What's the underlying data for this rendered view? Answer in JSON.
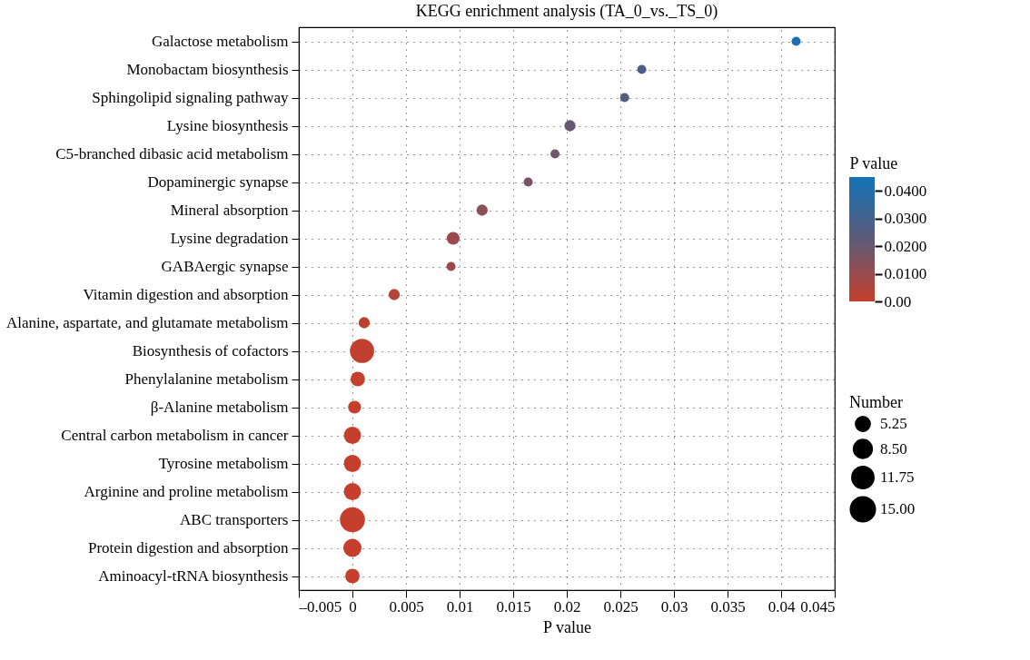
{
  "chart_data": {
    "type": "bubble",
    "title": "KEGG enrichment analysis (TA_0_vs._TS_0)",
    "xlabel": "P value",
    "legend_title": "Number",
    "clabel": "P value",
    "categories": [
      "Galactose metabolism",
      "Monobactam biosynthesis",
      "Sphingolipid signaling pathway",
      "Lysine biosynthesis",
      "C5-branched dibasic acid metabolism",
      "Dopaminergic synapse",
      "Mineral absorption",
      "Lysine degradation",
      "GABAergic synapse",
      "Vitamin digestion and absorption",
      "Alanine, aspartate, and glutamate metabolism",
      "Biosynthesis of cofactors",
      "Phenylalanine metabolism",
      "β-Alanine metabolism",
      "Central carbon metabolism in cancer",
      "Tyrosine metabolism",
      "Arginine and proline metabolism",
      "ABC transporters",
      "Protein digestion and absorption",
      "Aminoacyl-tRNA biosynthesis"
    ],
    "orientation": "horizontal",
    "values": [
      0.0414,
      0.027,
      0.0254,
      0.0203,
      0.0189,
      0.0164,
      0.0121,
      0.0094,
      0.0092,
      0.0039,
      0.0011,
      0.0009,
      0.0005,
      0.0002,
      0,
      0,
      0,
      0,
      0,
      0
    ],
    "cvalues": [
      0.0414,
      0.027,
      0.0254,
      0.0203,
      0.0189,
      0.0164,
      0.0121,
      0.0094,
      0.0092,
      0.0039,
      0.0011,
      0.0009,
      0.0005,
      0.0002,
      0,
      0,
      0,
      0,
      0,
      0
    ],
    "sizes": [
      2,
      2,
      2,
      3,
      2,
      2,
      3,
      4,
      2,
      3,
      3,
      14,
      5,
      4,
      7,
      7,
      7,
      15,
      8,
      5
    ],
    "size_legend": [
      {
        "value": 5.25,
        "label": "5.25"
      },
      {
        "value": 8.5,
        "label": "8.50"
      },
      {
        "value": 11.75,
        "label": "11.75"
      },
      {
        "value": 15,
        "label": "15.00"
      }
    ],
    "xlim": [
      -0.005,
      0.045
    ],
    "xticks": [
      {
        "value": -0.005,
        "label": "–0.005"
      },
      0,
      0.005,
      0.01,
      0.015,
      0.02,
      0.025,
      0.03,
      0.035,
      0.04,
      0.045
    ],
    "clim": [
      0,
      0.045
    ],
    "cticks": [
      {
        "value": 0,
        "label": "0.00"
      },
      {
        "value": 0.01,
        "label": "0.0100"
      },
      {
        "value": 0.02,
        "label": "0.0200"
      },
      {
        "value": 0.03,
        "label": "0.0300"
      },
      {
        "value": 0.04,
        "label": "0.0400"
      }
    ],
    "grid": true
  }
}
